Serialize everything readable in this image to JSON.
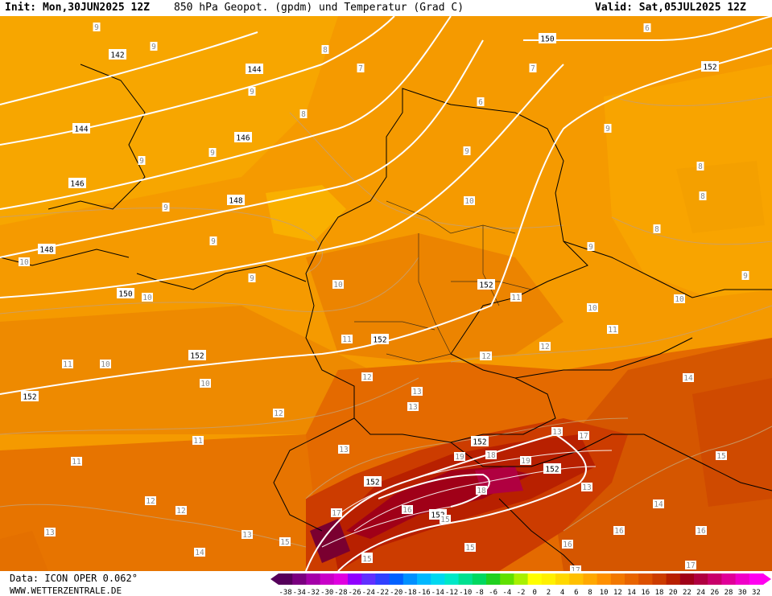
{
  "header": {
    "init": "Init: Mon,30JUN2025 12Z",
    "title": "850 hPa Geopot. (gpdm) und Temperatur (Grad C)",
    "valid": "Valid: Sat,05JUL2025 12Z"
  },
  "footer": {
    "source": "Data: ICON OPER 0.062°",
    "site": "WWW.WETTERZENTRALE.DE"
  },
  "colorbar": {
    "ticks": [
      "-38",
      "-34",
      "-32",
      "-30",
      "-28",
      "-26",
      "-24",
      "-22",
      "-20",
      "-18",
      "-16",
      "-14",
      "-12",
      "-10",
      "-8",
      "-6",
      "-4",
      "-2",
      "0",
      "2",
      "4",
      "6",
      "8",
      "10",
      "12",
      "14",
      "16",
      "18",
      "20",
      "22",
      "24",
      "26",
      "28",
      "30",
      "32"
    ],
    "colors": [
      "#55005a",
      "#7a007f",
      "#a400a8",
      "#c800c8",
      "#e000e0",
      "#9000ff",
      "#6030ff",
      "#3040ff",
      "#0060ff",
      "#0090ff",
      "#00b8ff",
      "#00d8f0",
      "#00e8c8",
      "#00e090",
      "#00d860",
      "#20d020",
      "#60e000",
      "#a8f000",
      "#ffff00",
      "#fff000",
      "#ffd800",
      "#ffc000",
      "#ffa800",
      "#ff9000",
      "#f27800",
      "#e86400",
      "#dc5000",
      "#cc3c00",
      "#b82000",
      "#a00018",
      "#b00040",
      "#c8006a",
      "#e00098",
      "#f000c8",
      "#ff00f0"
    ]
  },
  "map": {
    "geopotential_labels": [
      "142",
      "144",
      "144",
      "146",
      "146",
      "148",
      "148",
      "150",
      "150",
      "152",
      "152",
      "152",
      "152",
      "152",
      "152",
      "152",
      "152",
      "152"
    ],
    "temperature_labels": [
      "9",
      "9",
      "8",
      "7",
      "7",
      "6",
      "6",
      "9",
      "8",
      "9",
      "9",
      "8",
      "9",
      "9",
      "10",
      "10",
      "10",
      "9",
      "9",
      "9",
      "10",
      "10",
      "10",
      "11",
      "11",
      "11",
      "12",
      "12",
      "12",
      "13",
      "12",
      "13",
      "13",
      "14",
      "15",
      "16",
      "17",
      "18",
      "19",
      "19",
      "18",
      "17",
      "16",
      "15",
      "14",
      "13",
      "12",
      "11",
      "11",
      "13",
      "14",
      "15",
      "15",
      "16",
      "17",
      "17",
      "16",
      "15",
      "14",
      "13",
      "13",
      "12",
      "11",
      "10",
      "10",
      "8",
      "8",
      "8",
      "9",
      "9",
      "12",
      "11"
    ]
  }
}
